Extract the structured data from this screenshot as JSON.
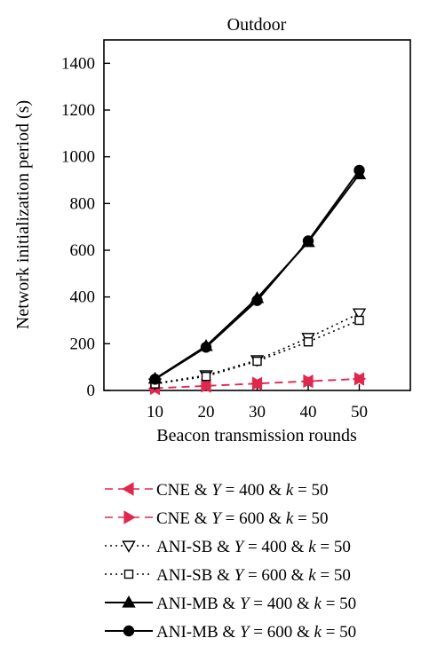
{
  "chart_data": {
    "type": "line",
    "title": "Outdoor",
    "xlabel": "Beacon transmission rounds",
    "ylabel": "Network initialization period (s)",
    "x": [
      10,
      20,
      30,
      40,
      50
    ],
    "xlim": [
      0,
      60
    ],
    "ylim": [
      0,
      1500
    ],
    "xticks": [
      10,
      20,
      30,
      40,
      50
    ],
    "yticks": [
      0,
      200,
      400,
      600,
      800,
      1000,
      1200,
      1400
    ],
    "grid": false,
    "legend_position": "below",
    "series": [
      {
        "name": "CNE & Y = 400 & k = 50",
        "label_parts": [
          "CNE & ",
          "Y",
          " = 400 & ",
          "k",
          " = 50"
        ],
        "values": [
          9,
          19,
          29,
          39,
          49
        ],
        "color": "#e0284f",
        "dash": "dashed",
        "marker": "triangle-left-filled"
      },
      {
        "name": "CNE & Y = 600 & k = 50",
        "label_parts": [
          "CNE & ",
          "Y",
          " = 600 & ",
          "k",
          " = 50"
        ],
        "values": [
          10,
          20,
          30,
          40,
          50
        ],
        "color": "#e0284f",
        "dash": "dashed",
        "marker": "triangle-right-filled"
      },
      {
        "name": "ANI-SB & Y = 400 & k = 50",
        "label_parts": [
          "ANI-SB & ",
          "Y",
          " = 400 & ",
          "k",
          " = 50"
        ],
        "values": [
          30,
          65,
          130,
          225,
          330
        ],
        "color": "#000000",
        "dash": "dotted",
        "marker": "triangle-down-open"
      },
      {
        "name": "ANI-SB & Y = 600 & k = 50",
        "label_parts": [
          "ANI-SB & ",
          "Y",
          " = 600 & ",
          "k",
          " = 50"
        ],
        "values": [
          28,
          60,
          125,
          208,
          300
        ],
        "color": "#000000",
        "dash": "dotted",
        "marker": "square-open"
      },
      {
        "name": "ANI-MB & Y = 400 & k = 50",
        "label_parts": [
          "ANI-MB & ",
          "Y",
          " = 400 & ",
          "k",
          " = 50"
        ],
        "values": [
          50,
          190,
          395,
          635,
          925
        ],
        "color": "#000000",
        "dash": "solid",
        "marker": "triangle-up-filled"
      },
      {
        "name": "ANI-MB & Y = 600 & k = 50",
        "label_parts": [
          "ANI-MB & ",
          "Y",
          " = 600 & ",
          "k",
          " = 50"
        ],
        "values": [
          48,
          185,
          385,
          640,
          942
        ],
        "color": "#000000",
        "dash": "solid",
        "marker": "circle-filled"
      }
    ]
  }
}
